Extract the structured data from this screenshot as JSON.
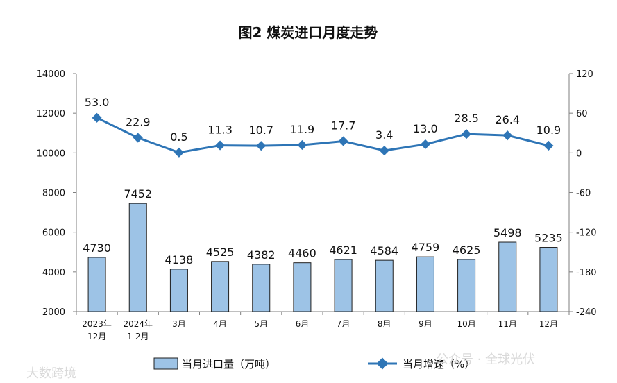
{
  "chart_data": {
    "type": "bar+line",
    "title": "图2  煤炭进口月度走势",
    "categories": [
      [
        "2023年",
        "12月"
      ],
      [
        "2024年",
        "1-2月"
      ],
      [
        "3月"
      ],
      [
        "4月"
      ],
      [
        "5月"
      ],
      [
        "6月"
      ],
      [
        "7月"
      ],
      [
        "8月"
      ],
      [
        "9月"
      ],
      [
        "10月"
      ],
      [
        "11月"
      ],
      [
        "12月"
      ]
    ],
    "bar_series": {
      "name": "当月进口量（万吨）",
      "axis": "left",
      "values": [
        4730,
        7452,
        4138,
        4525,
        4382,
        4460,
        4621,
        4584,
        4759,
        4625,
        5498,
        5235
      ],
      "color": "#9dc3e6",
      "border_color": "#1f1f1f"
    },
    "line_series": {
      "name": "当月增速（%）",
      "axis": "right",
      "values": [
        53.0,
        22.9,
        0.5,
        11.3,
        10.7,
        11.9,
        17.7,
        3.4,
        13.0,
        28.5,
        26.4,
        10.9
      ],
      "color": "#2e75b6"
    },
    "y_left": {
      "min": 2000,
      "max": 14000,
      "ticks": [
        2000,
        4000,
        6000,
        8000,
        10000,
        12000,
        14000
      ]
    },
    "y_right": {
      "min": -240,
      "max": 120,
      "ticks": [
        -240,
        -180,
        -120,
        -60,
        0,
        60,
        120
      ]
    },
    "legend_position": "bottom",
    "grid": false
  },
  "watermarks": [
    "公众号 · 全球光伏",
    "大数跨境"
  ]
}
